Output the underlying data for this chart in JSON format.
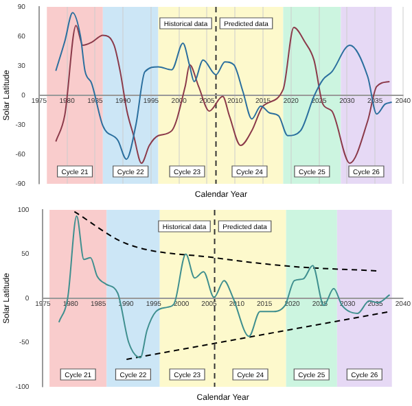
{
  "chart_data": [
    {
      "type": "line",
      "xlabel": "Calendar Year",
      "ylabel": "Solar Latitude",
      "xlim": [
        1975,
        2040
      ],
      "ylim": [
        -90,
        90
      ],
      "xticks": [
        1975,
        1980,
        1985,
        1990,
        1995,
        2000,
        2005,
        2010,
        2015,
        2020,
        2025,
        2030,
        2035,
        2040
      ],
      "yticks": [
        -90,
        -60,
        -30,
        0,
        30,
        60,
        90
      ],
      "grid": "x",
      "marker": "none",
      "annotations": [
        "Historical data",
        "Predicted data"
      ],
      "ref_lines": [
        {
          "axis": "x",
          "value": 2006.6,
          "line_style": "dashed",
          "color": "#333333"
        }
      ],
      "bands": [
        {
          "axis": "x",
          "from": 1976.4,
          "to": 1986.4,
          "label": "Cycle 21",
          "color": "#f9cccc"
        },
        {
          "axis": "x",
          "from": 1986.4,
          "to": 1996.3,
          "label": "Cycle 22",
          "color": "#cce6f6"
        },
        {
          "axis": "x",
          "from": 1996.3,
          "to": 2006.6,
          "label": "Cycle 23",
          "color": "#fdf9cc"
        },
        {
          "axis": "x",
          "from": 2006.6,
          "to": 2018.6,
          "label": "Cycle 24",
          "color": "#fdf9cc"
        },
        {
          "axis": "x",
          "from": 2018.6,
          "to": 2028.9,
          "label": "Cycle 25",
          "color": "#ccf5e0"
        },
        {
          "axis": "x",
          "from": 2028.9,
          "to": 2038,
          "label": "Cycle 26",
          "color": "#e6d9f5"
        }
      ],
      "series": [
        {
          "color": "#2b6f9e",
          "x": [
            1978,
            1979.6,
            1981,
            1982.4,
            1983.2,
            1984.4,
            1986.4,
            1989.1,
            1990.6,
            1992.3,
            1993.9,
            1996.3,
            1998.7,
            2000.7,
            2001.9,
            2002.7,
            2004.3,
            2006.6,
            2008.2,
            2009.8,
            2011.4,
            2013,
            2014.6,
            2016.2,
            2017.8,
            2019.4,
            2021.7,
            2024.1,
            2025.7,
            2027.3,
            2030.5,
            2033.7,
            2035.3,
            2036.8,
            2038
          ],
          "values": [
            25,
            55,
            84,
            60,
            25,
            12,
            -31,
            -46,
            -65,
            -30,
            24,
            29,
            26,
            53,
            30,
            14,
            36,
            21,
            34,
            31,
            4,
            -24,
            -11,
            -18,
            -21,
            -41,
            -36,
            -1,
            16,
            24,
            51,
            19,
            -19,
            -9,
            -7
          ]
        },
        {
          "color": "#8b3a4a",
          "x": [
            1978,
            1979.6,
            1981.6,
            1982.8,
            1984.4,
            1986.4,
            1988.4,
            1989.5,
            1990.7,
            1991.9,
            1993.3,
            1994.7,
            1996.3,
            1998.7,
            2001.1,
            2001.9,
            2003.5,
            2005.4,
            2007.8,
            2009,
            2011,
            2013,
            2015,
            2018.6,
            2020.5,
            2022.5,
            2024.1,
            2025.7,
            2027.3,
            2030.5,
            2033.7,
            2035.3,
            2037.6
          ],
          "values": [
            -47,
            -20,
            71,
            51,
            54,
            61,
            51,
            24,
            -16,
            -41,
            -69,
            -51,
            -41,
            -36,
            9,
            31,
            9,
            -16,
            -1,
            -21,
            -51,
            -36,
            -11,
            6,
            69,
            54,
            36,
            -9,
            -16,
            -69,
            -26,
            9,
            14
          ]
        }
      ]
    },
    {
      "type": "line",
      "xlabel": "Calendar Year",
      "ylabel": "Solar Latitude",
      "xlim": [
        1975,
        2040
      ],
      "ylim": [
        -100,
        100
      ],
      "xticks": [
        1975,
        1980,
        1985,
        1990,
        1995,
        2000,
        2005,
        2010,
        2015,
        2020,
        2025,
        2030,
        2035,
        2040
      ],
      "yticks": [
        -100,
        -50,
        0,
        50,
        100
      ],
      "marker": "none",
      "annotations": [
        "Historical data",
        "Predicted data"
      ],
      "ref_lines": [
        {
          "axis": "x",
          "value": 2006,
          "line_style": "dashed",
          "color": "#333333"
        }
      ],
      "bands": [
        {
          "axis": "x",
          "from": 1976.2,
          "to": 1986.5,
          "label": "Cycle 21",
          "color": "#f9cccc"
        },
        {
          "axis": "x",
          "from": 1986.5,
          "to": 1996.1,
          "label": "Cycle 22",
          "color": "#cce6f6"
        },
        {
          "axis": "x",
          "from": 1996.1,
          "to": 2006,
          "label": "Cycle 23",
          "color": "#fdf9cc"
        },
        {
          "axis": "x",
          "from": 2006,
          "to": 2018.9,
          "label": "Cycle 24",
          "color": "#fdf9cc"
        },
        {
          "axis": "x",
          "from": 2018.9,
          "to": 2028.1,
          "label": "Cycle 25",
          "color": "#ccf5e0"
        },
        {
          "axis": "x",
          "from": 2028.1,
          "to": 2038,
          "label": "Cycle 26",
          "color": "#e6d9f5"
        }
      ],
      "series": [
        {
          "color": "#3f8f8f",
          "x": [
            1977.9,
            1979.5,
            1981.1,
            1982.4,
            1983.6,
            1984.8,
            1986.4,
            1988.5,
            1990.5,
            1992.6,
            1993.8,
            1995.4,
            1997.5,
            1998.7,
            2000.8,
            2002.4,
            2004,
            2005.9,
            2007.7,
            2009.3,
            2012.2,
            2014.2,
            2016.3,
            2018.7,
            2020.4,
            2022,
            2023.7,
            2025.7,
            2027.5,
            2029,
            2031.8,
            2033.9,
            2035.5,
            2037.6
          ],
          "values": [
            -27,
            1,
            93,
            44,
            46,
            25,
            16,
            6,
            -50,
            -67,
            -36,
            -15,
            -10,
            -6,
            50,
            23,
            30,
            1,
            20,
            1,
            -43,
            -15,
            -15,
            -8,
            20,
            22,
            37,
            -8,
            11,
            -8,
            -17,
            -3,
            -5,
            4
          ]
        },
        {
          "type": "line",
          "line_style": "dashed",
          "color": "#000000",
          "x": [
            1980.7,
            1990,
            2005.9,
            2020,
            2035.5
          ],
          "values": [
            98,
            62,
            46,
            36,
            31
          ]
        },
        {
          "type": "line",
          "line_style": "dashed",
          "color": "#000000",
          "x": [
            1990.1,
            2005.9,
            2037.6
          ],
          "values": [
            -69,
            -51,
            -15
          ]
        }
      ]
    }
  ]
}
